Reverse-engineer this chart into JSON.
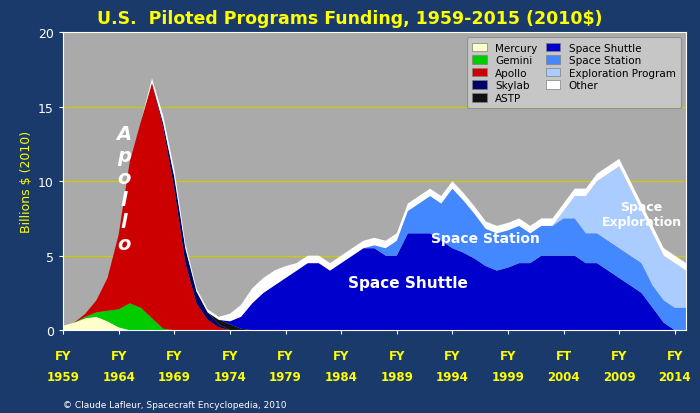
{
  "title": "U.S.  Piloted Programs Funding, 1959-2015 (2010$)",
  "ylabel": "Billions $ (2010)",
  "background_outer": "#1a3a6b",
  "background_inner": "#aaaaaa",
  "title_color": "#ffff00",
  "years": [
    1959,
    1960,
    1961,
    1962,
    1963,
    1964,
    1965,
    1966,
    1967,
    1968,
    1969,
    1970,
    1971,
    1972,
    1973,
    1974,
    1975,
    1976,
    1977,
    1978,
    1979,
    1980,
    1981,
    1982,
    1983,
    1984,
    1985,
    1986,
    1987,
    1988,
    1989,
    1990,
    1991,
    1992,
    1993,
    1994,
    1995,
    1996,
    1997,
    1998,
    1999,
    2000,
    2001,
    2002,
    2003,
    2004,
    2005,
    2006,
    2007,
    2008,
    2009,
    2010,
    2011,
    2012,
    2013,
    2014,
    2015
  ],
  "mercury": [
    0.3,
    0.5,
    0.8,
    0.9,
    0.6,
    0.2,
    0.0,
    0.0,
    0.0,
    0.0,
    0.0,
    0.0,
    0.0,
    0.0,
    0.0,
    0.0,
    0.0,
    0.0,
    0.0,
    0.0,
    0.0,
    0.0,
    0.0,
    0.0,
    0.0,
    0.0,
    0.0,
    0.0,
    0.0,
    0.0,
    0.0,
    0.0,
    0.0,
    0.0,
    0.0,
    0.0,
    0.0,
    0.0,
    0.0,
    0.0,
    0.0,
    0.0,
    0.0,
    0.0,
    0.0,
    0.0,
    0.0,
    0.0,
    0.0,
    0.0,
    0.0,
    0.0,
    0.0,
    0.0,
    0.0,
    0.0,
    0.0
  ],
  "gemini": [
    0.0,
    0.0,
    0.1,
    0.3,
    0.7,
    1.2,
    1.8,
    1.5,
    0.8,
    0.1,
    0.0,
    0.0,
    0.0,
    0.0,
    0.0,
    0.0,
    0.0,
    0.0,
    0.0,
    0.0,
    0.0,
    0.0,
    0.0,
    0.0,
    0.0,
    0.0,
    0.0,
    0.0,
    0.0,
    0.0,
    0.0,
    0.0,
    0.0,
    0.0,
    0.0,
    0.0,
    0.0,
    0.0,
    0.0,
    0.0,
    0.0,
    0.0,
    0.0,
    0.0,
    0.0,
    0.0,
    0.0,
    0.0,
    0.0,
    0.0,
    0.0,
    0.0,
    0.0,
    0.0,
    0.0,
    0.0,
    0.0
  ],
  "apollo": [
    0.0,
    0.0,
    0.2,
    0.8,
    2.2,
    5.0,
    9.5,
    12.5,
    15.8,
    13.5,
    9.5,
    4.5,
    1.8,
    0.7,
    0.2,
    0.0,
    0.0,
    0.0,
    0.0,
    0.0,
    0.0,
    0.0,
    0.0,
    0.0,
    0.0,
    0.0,
    0.0,
    0.0,
    0.0,
    0.0,
    0.0,
    0.0,
    0.0,
    0.0,
    0.0,
    0.0,
    0.0,
    0.0,
    0.0,
    0.0,
    0.0,
    0.0,
    0.0,
    0.0,
    0.0,
    0.0,
    0.0,
    0.0,
    0.0,
    0.0,
    0.0,
    0.0,
    0.0,
    0.0,
    0.0,
    0.0,
    0.0
  ],
  "skylab": [
    0.0,
    0.0,
    0.0,
    0.0,
    0.0,
    0.0,
    0.0,
    0.0,
    0.0,
    0.3,
    0.8,
    1.0,
    0.8,
    0.5,
    0.2,
    0.0,
    0.0,
    0.0,
    0.0,
    0.0,
    0.0,
    0.0,
    0.0,
    0.0,
    0.0,
    0.0,
    0.0,
    0.0,
    0.0,
    0.0,
    0.0,
    0.0,
    0.0,
    0.0,
    0.0,
    0.0,
    0.0,
    0.0,
    0.0,
    0.0,
    0.0,
    0.0,
    0.0,
    0.0,
    0.0,
    0.0,
    0.0,
    0.0,
    0.0,
    0.0,
    0.0,
    0.0,
    0.0,
    0.0,
    0.0,
    0.0,
    0.0
  ],
  "astp": [
    0.0,
    0.0,
    0.0,
    0.0,
    0.0,
    0.0,
    0.0,
    0.0,
    0.0,
    0.0,
    0.0,
    0.0,
    0.0,
    0.0,
    0.3,
    0.4,
    0.1,
    0.0,
    0.0,
    0.0,
    0.0,
    0.0,
    0.0,
    0.0,
    0.0,
    0.0,
    0.0,
    0.0,
    0.0,
    0.0,
    0.0,
    0.0,
    0.0,
    0.0,
    0.0,
    0.0,
    0.0,
    0.0,
    0.0,
    0.0,
    0.0,
    0.0,
    0.0,
    0.0,
    0.0,
    0.0,
    0.0,
    0.0,
    0.0,
    0.0,
    0.0,
    0.0,
    0.0,
    0.0,
    0.0,
    0.0,
    0.0
  ],
  "shuttle": [
    0.0,
    0.0,
    0.0,
    0.0,
    0.0,
    0.0,
    0.0,
    0.0,
    0.0,
    0.0,
    0.0,
    0.0,
    0.0,
    0.0,
    0.0,
    0.2,
    0.8,
    1.8,
    2.5,
    3.0,
    3.5,
    4.0,
    4.5,
    4.5,
    4.0,
    4.5,
    5.0,
    5.5,
    5.5,
    5.0,
    5.0,
    6.5,
    6.5,
    6.5,
    6.0,
    5.5,
    5.2,
    4.8,
    4.3,
    4.0,
    4.2,
    4.5,
    4.5,
    5.0,
    5.0,
    5.0,
    5.0,
    4.5,
    4.5,
    4.0,
    3.5,
    3.0,
    2.5,
    1.5,
    0.5,
    0.0,
    0.0
  ],
  "spacestation": [
    0.0,
    0.0,
    0.0,
    0.0,
    0.0,
    0.0,
    0.0,
    0.0,
    0.0,
    0.0,
    0.0,
    0.0,
    0.0,
    0.0,
    0.0,
    0.0,
    0.0,
    0.0,
    0.0,
    0.0,
    0.0,
    0.0,
    0.0,
    0.0,
    0.0,
    0.0,
    0.0,
    0.0,
    0.2,
    0.5,
    1.0,
    1.5,
    2.0,
    2.5,
    2.5,
    4.0,
    3.5,
    3.0,
    2.5,
    2.5,
    2.5,
    2.5,
    2.0,
    2.0,
    2.0,
    2.5,
    2.5,
    2.0,
    2.0,
    2.0,
    2.0,
    2.0,
    2.0,
    1.5,
    1.5,
    1.5,
    1.5
  ],
  "exploration": [
    0.0,
    0.0,
    0.0,
    0.0,
    0.0,
    0.0,
    0.0,
    0.0,
    0.0,
    0.0,
    0.0,
    0.0,
    0.0,
    0.0,
    0.0,
    0.0,
    0.0,
    0.0,
    0.0,
    0.0,
    0.0,
    0.0,
    0.0,
    0.0,
    0.0,
    0.0,
    0.0,
    0.0,
    0.0,
    0.0,
    0.0,
    0.0,
    0.0,
    0.0,
    0.0,
    0.0,
    0.0,
    0.0,
    0.0,
    0.0,
    0.0,
    0.0,
    0.0,
    0.0,
    0.0,
    0.5,
    1.5,
    2.5,
    3.5,
    4.5,
    5.5,
    4.5,
    3.5,
    3.5,
    3.0,
    3.0,
    2.5
  ],
  "other": [
    0.0,
    0.0,
    0.0,
    0.0,
    0.0,
    0.0,
    0.0,
    0.0,
    0.3,
    0.5,
    0.5,
    0.3,
    0.2,
    0.2,
    0.2,
    0.5,
    0.8,
    1.0,
    1.0,
    1.0,
    0.8,
    0.5,
    0.5,
    0.5,
    0.5,
    0.5,
    0.5,
    0.5,
    0.5,
    0.5,
    0.5,
    0.5,
    0.5,
    0.5,
    0.5,
    0.5,
    0.5,
    0.5,
    0.5,
    0.5,
    0.5,
    0.5,
    0.5,
    0.5,
    0.5,
    0.5,
    0.5,
    0.5,
    0.5,
    0.5,
    0.5,
    0.5,
    0.5,
    0.5,
    0.5,
    0.5,
    0.5
  ],
  "colors": {
    "mercury": "#ffffcc",
    "gemini": "#00cc00",
    "apollo": "#cc0000",
    "skylab": "#000066",
    "astp": "#111111",
    "shuttle": "#0000cc",
    "spacestation": "#4488ff",
    "exploration": "#aaccff",
    "other": "#ffffff"
  },
  "xtick_years": [
    1959,
    1964,
    1969,
    1974,
    1979,
    1984,
    1989,
    1994,
    1999,
    2004,
    2009,
    2014
  ],
  "xtick_labels_top": [
    "FY",
    "FY",
    "FY",
    "FY",
    "FY",
    "FY",
    "FY",
    "FY",
    "FY",
    "FT",
    "FY",
    "FY"
  ],
  "xtick_labels_bot": [
    "1959",
    "1964",
    "1969",
    "1974",
    "1979",
    "1984",
    "1989",
    "1994",
    "1999",
    "2004",
    "2009",
    "2014"
  ],
  "ylim": [
    0,
    20
  ],
  "yticks": [
    0,
    5,
    10,
    15,
    20
  ],
  "grid_color": "#cccc00",
  "axis_label_color": "#ffff00"
}
